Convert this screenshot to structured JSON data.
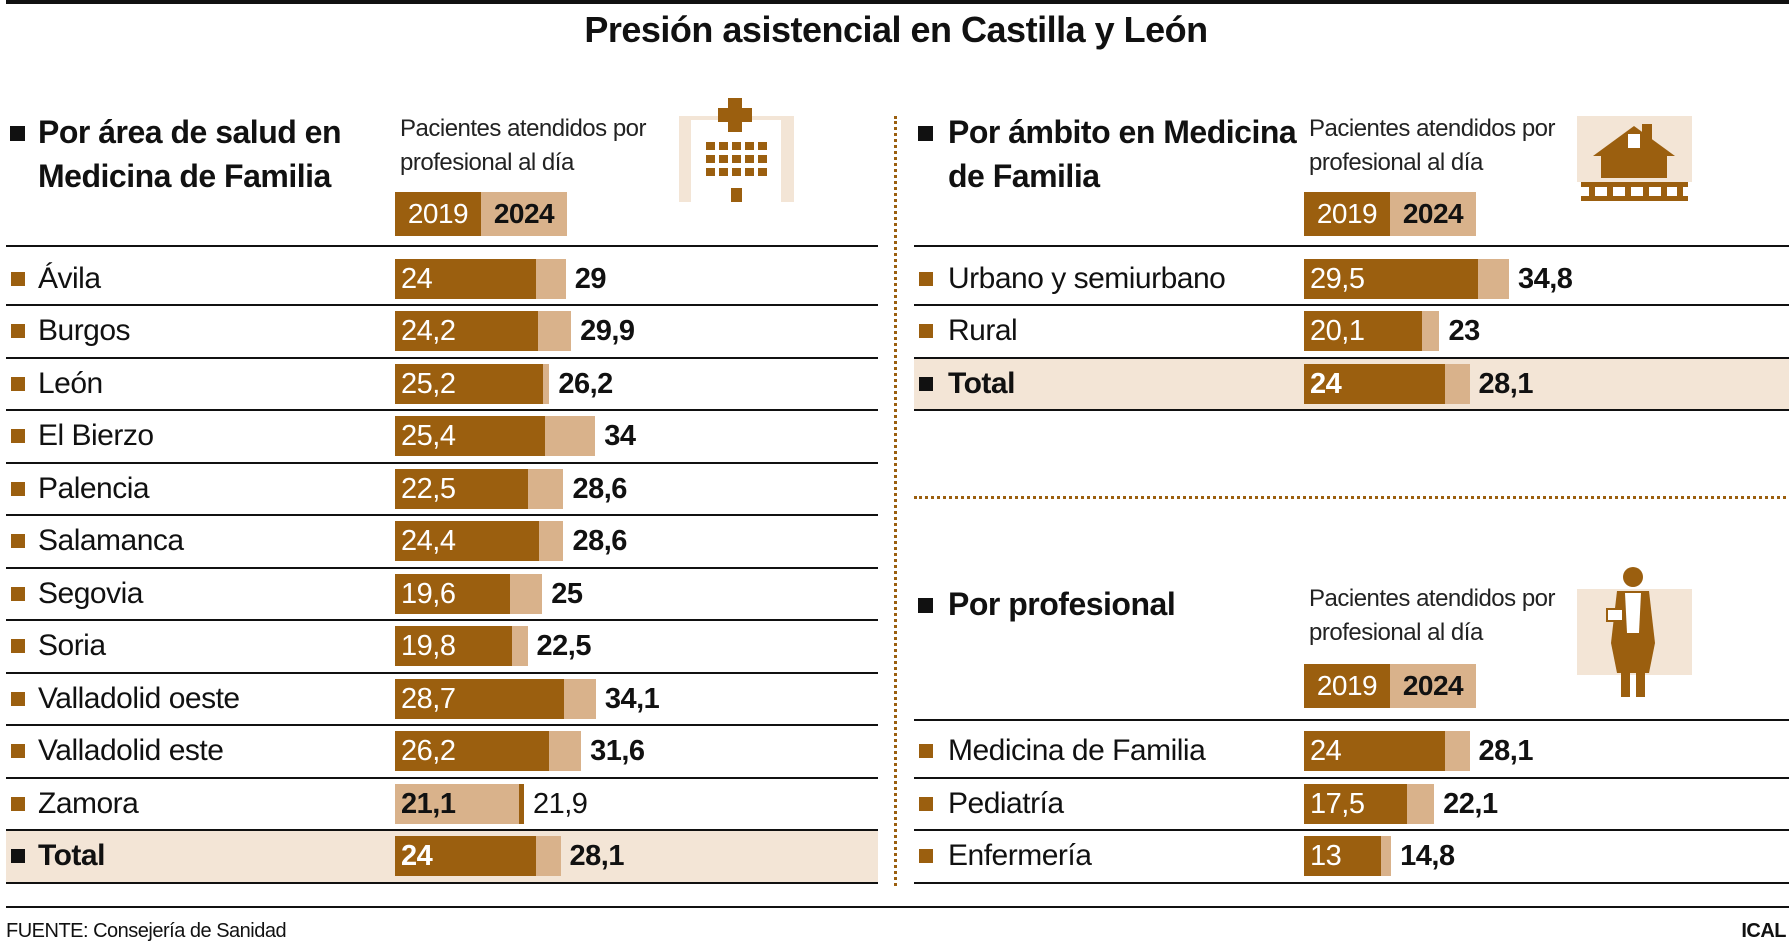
{
  "title": "Presión asistencial en Castilla y León",
  "source": "FUENTE: Consejería de Sanidad",
  "credit": "ICAL",
  "chart_data": [
    {
      "type": "bar",
      "orientation": "horizontal",
      "title": "Por área de salud en Medicina de Familia",
      "subtitle": "Pacientes atendidos por profesional al día",
      "categories": [
        "Ávila",
        "Burgos",
        "León",
        "El Bierzo",
        "Palencia",
        "Salamanca",
        "Segovia",
        "Soria",
        "Valladolid oeste",
        "Valladolid este",
        "Zamora",
        "Total"
      ],
      "highlight_index": 11,
      "series": [
        {
          "name": "2019",
          "color": "#9b5f0f",
          "values": [
            24,
            24.2,
            25.2,
            25.4,
            22.5,
            24.4,
            19.6,
            19.8,
            28.7,
            26.2,
            21.9,
            24
          ],
          "value_labels": [
            "24",
            "24,2",
            "25,2",
            "25,4",
            "22,5",
            "24,4",
            "19,6",
            "19,8",
            "28,7",
            "26,2",
            "21,9",
            "24"
          ]
        },
        {
          "name": "2024",
          "color": "#d9b28b",
          "values": [
            29,
            29.9,
            26.2,
            34,
            28.6,
            28.6,
            25,
            22.5,
            34.1,
            31.6,
            21.1,
            28.1
          ],
          "value_labels": [
            "29",
            "29,9",
            "26,2",
            "34",
            "28,6",
            "28,6",
            "25",
            "22,5",
            "34,1",
            "31,6",
            "21,1",
            "28,1"
          ]
        }
      ]
    },
    {
      "type": "bar",
      "orientation": "horizontal",
      "title": "Por ámbito en Medicina de Familia",
      "subtitle": "Pacientes atendidos por profesional al día",
      "categories": [
        "Urbano y semiurbano",
        "Rural",
        "Total"
      ],
      "highlight_index": 2,
      "series": [
        {
          "name": "2019",
          "color": "#9b5f0f",
          "values": [
            29.5,
            20.1,
            24
          ],
          "value_labels": [
            "29,5",
            "20,1",
            "24"
          ]
        },
        {
          "name": "2024",
          "color": "#d9b28b",
          "values": [
            34.8,
            23,
            28.1
          ],
          "value_labels": [
            "34,8",
            "23",
            "28,1"
          ]
        }
      ]
    },
    {
      "type": "bar",
      "orientation": "horizontal",
      "title": "Por profesional",
      "subtitle": "Pacientes atendidos por profesional al día",
      "categories": [
        "Medicina de Familia",
        "Pediatría",
        "Enfermería"
      ],
      "series": [
        {
          "name": "2019",
          "color": "#9b5f0f",
          "values": [
            24,
            17.5,
            13
          ],
          "value_labels": [
            "24",
            "17,5",
            "13"
          ]
        },
        {
          "name": "2024",
          "color": "#d9b28b",
          "values": [
            28.1,
            22.1,
            14.8
          ],
          "value_labels": [
            "28,1",
            "22,1",
            "14,8"
          ]
        }
      ]
    }
  ]
}
